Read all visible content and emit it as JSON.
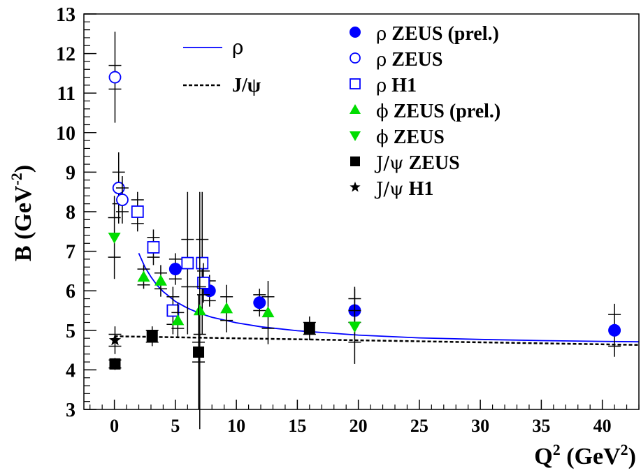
{
  "chart_data": {
    "type": "scatter",
    "xlabel": {
      "base": "Q",
      "sup": "2",
      "unit_pre": " (GeV",
      "unit_sup": "2",
      "unit_post": ")"
    },
    "ylabel": {
      "base": "B (GeV",
      "sup": "-2",
      "post": ")"
    },
    "xlim": [
      -2.5,
      43
    ],
    "ylim": [
      3,
      13
    ],
    "x_ticks": [
      0,
      5,
      10,
      15,
      20,
      25,
      30,
      35,
      40
    ],
    "y_ticks": [
      3,
      4,
      5,
      6,
      7,
      8,
      9,
      10,
      11,
      12,
      13
    ],
    "grid": false,
    "series": [
      {
        "name": "ρ ZEUS (prel.)",
        "sym": "ρ",
        "text": " ZEUS (prel.)",
        "marker": "circle-filled",
        "color": "#0000ff",
        "points": [
          {
            "x": 5.0,
            "y": 6.55,
            "err_stat": 0.25,
            "err_tot": 0.4
          },
          {
            "x": 7.8,
            "y": 6.0,
            "err_stat": 0.25,
            "err_tot": 0.4
          },
          {
            "x": 11.9,
            "y": 5.7,
            "err_stat": 0.2,
            "err_tot": 0.35
          },
          {
            "x": 19.7,
            "y": 5.5,
            "err_stat": 0.3,
            "err_tot": 0.6
          },
          {
            "x": 41.0,
            "y": 5.0,
            "err_stat": 0.4,
            "err_tot": 0.67
          }
        ]
      },
      {
        "name": "ρ ZEUS",
        "sym": "ρ",
        "text": " ZEUS",
        "marker": "circle-open",
        "color": "#0000ff",
        "points": [
          {
            "x": 0.05,
            "y": 11.4,
            "err_stat": 0.3,
            "err_tot": 1.15
          },
          {
            "x": 0.35,
            "y": 8.6,
            "err_stat": 0.4,
            "err_tot": 0.9
          },
          {
            "x": 0.65,
            "y": 8.3,
            "err_stat": 0.3,
            "err_tot": 0.6
          }
        ]
      },
      {
        "name": "ρ H1",
        "sym": "ρ",
        "text": " H1",
        "marker": "square-open",
        "color": "#0000ff",
        "points": [
          {
            "x": 1.9,
            "y": 8.0,
            "err_stat": 0.3,
            "err_tot": 0.5
          },
          {
            "x": 3.2,
            "y": 7.1,
            "err_stat": 0.25,
            "err_tot": 0.45
          },
          {
            "x": 4.8,
            "y": 5.5,
            "err_stat": 0.35,
            "err_tot": 0.6
          },
          {
            "x": 6.0,
            "y": 6.7,
            "err_stat": 0.6,
            "err_tot": 1.8
          },
          {
            "x": 7.2,
            "y": 6.7,
            "err_stat": 0.6,
            "err_tot": 1.8
          },
          {
            "x": 7.3,
            "y": 6.2,
            "err_stat": 0.3,
            "err_tot": 0.5
          }
        ]
      },
      {
        "name": "ϕ ZEUS (prel.)",
        "sym": "ϕ",
        "text": " ZEUS (prel.)",
        "marker": "triangle-up",
        "color": "#00dd00",
        "points": [
          {
            "x": 2.4,
            "y": 6.35,
            "err_stat": 0.2,
            "err_tot": 0.3
          },
          {
            "x": 3.8,
            "y": 6.25,
            "err_stat": 0.2,
            "err_tot": 0.4
          },
          {
            "x": 5.2,
            "y": 5.25,
            "err_stat": 0.2,
            "err_tot": 0.45
          },
          {
            "x": 7.0,
            "y": 5.5,
            "err_stat": 0.6,
            "err_tot": 3.0
          },
          {
            "x": 9.2,
            "y": 5.55,
            "err_stat": 0.3,
            "err_tot": 0.6
          },
          {
            "x": 12.6,
            "y": 5.45,
            "err_stat": 0.4,
            "err_tot": 0.8
          }
        ]
      },
      {
        "name": "ϕ ZEUS",
        "sym": "ϕ",
        "text": " ZEUS",
        "marker": "triangle-down",
        "color": "#00dd00",
        "points": [
          {
            "x": 0.0,
            "y": 7.35,
            "err_stat": 0.5,
            "err_tot": 1.05
          },
          {
            "x": 19.7,
            "y": 5.1,
            "err_stat": 0.4,
            "err_tot": 0.95
          }
        ]
      },
      {
        "name": "J/ψ ZEUS",
        "sym": "J/ψ",
        "text": " ZEUS",
        "marker": "square-filled",
        "color": "#000000",
        "points": [
          {
            "x": 0.05,
            "y": 4.15,
            "err_stat": 0.1,
            "err_tot": 0.15
          },
          {
            "x": 3.1,
            "y": 4.85,
            "err_stat": 0.15,
            "err_tot": 0.25
          },
          {
            "x": 6.9,
            "y": 4.45,
            "err_stat": 0.25,
            "err_tot": 1.45
          },
          {
            "x": 16.0,
            "y": 5.05,
            "err_stat": 0.15,
            "err_tot": 0.3
          }
        ]
      },
      {
        "name": "J/ψ H1",
        "sym": "J/ψ",
        "text": " H1",
        "marker": "star",
        "color": "#000000",
        "points": [
          {
            "x": 0.05,
            "y": 4.75,
            "err_stat": 0.15,
            "err_tot": 0.35
          }
        ]
      }
    ],
    "curves": [
      {
        "name": "ρ",
        "label": "ρ",
        "style": "solid",
        "color": "#0000ff",
        "x": [
          2.0,
          2.5,
          3.0,
          3.5,
          4.0,
          5.0,
          6.0,
          7.0,
          8.0,
          10.0,
          12.0,
          15.0,
          20.0,
          25.0,
          30.0,
          35.0,
          40.0,
          43.0
        ],
        "y": [
          6.95,
          6.6,
          6.35,
          6.14,
          5.98,
          5.73,
          5.56,
          5.43,
          5.33,
          5.19,
          5.09,
          4.99,
          4.88,
          4.81,
          4.77,
          4.74,
          4.72,
          4.71
        ]
      },
      {
        "name": "J/ψ",
        "label": "J/ψ",
        "style": "dashed",
        "color": "#000000",
        "x": [
          0,
          43
        ],
        "y": [
          4.85,
          4.63
        ]
      }
    ],
    "legend_position": "top-right"
  }
}
